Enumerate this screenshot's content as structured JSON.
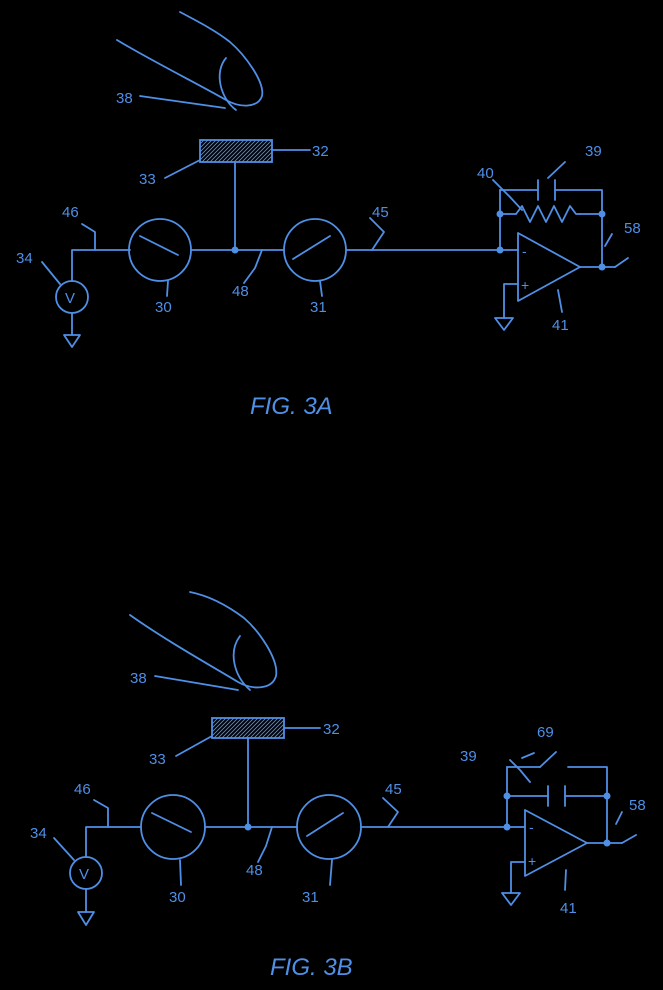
{
  "figA": {
    "caption": "FIG. 3A",
    "labels": {
      "finger": "38",
      "pad": "32",
      "pad_base": "33",
      "source_wire": "46",
      "source": "34",
      "switch1": "30",
      "node": "48",
      "switch2": "31",
      "line": "45",
      "resistor": "40",
      "capacitor": "39",
      "opamp": "41",
      "output": "58"
    },
    "voltage_symbol": "V",
    "minus": "-",
    "plus": "+"
  },
  "figB": {
    "caption": "FIG. 3B",
    "labels": {
      "finger": "38",
      "pad": "32",
      "pad_base": "33",
      "source_wire": "46",
      "source": "34",
      "switch1": "30",
      "node": "48",
      "switch2": "31",
      "line": "45",
      "reset_switch": "69",
      "capacitor": "39",
      "opamp": "41",
      "output": "58"
    },
    "voltage_symbol": "V",
    "minus": "-",
    "plus": "+"
  },
  "colors": {
    "line": "#4f8fe6",
    "background": "#000000"
  }
}
